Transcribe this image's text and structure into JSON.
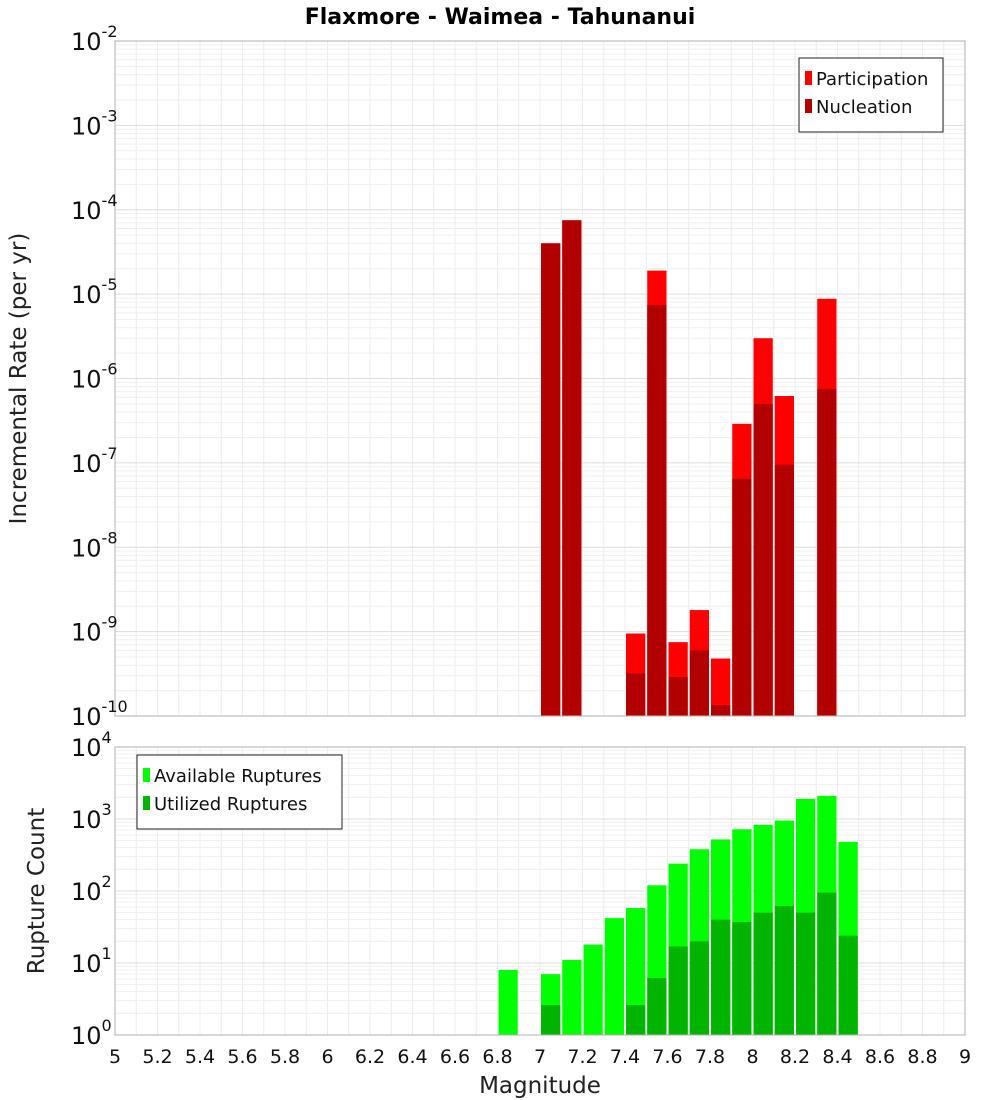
{
  "title": "Flaxmore - Waimea - Tahunanui",
  "chart_data": [
    {
      "type": "bar",
      "xlabel": "Magnitude",
      "ylabel": "Incremental Rate (per yr)",
      "yscale": "log",
      "ylim": [
        1e-10,
        0.01
      ],
      "xlim": [
        5,
        9
      ],
      "legend": "top-right",
      "x": [
        7.0,
        7.1,
        7.4,
        7.5,
        7.6,
        7.7,
        7.8,
        7.9,
        8.0,
        8.1,
        8.3
      ],
      "series": [
        {
          "name": "Participation",
          "color": "#ff0000",
          "values": [
            4e-05,
            7.5e-05,
            9.5e-10,
            1.9e-05,
            7.5e-10,
            1.8e-09,
            4.8e-10,
            2.9e-07,
            3e-06,
            6.2e-07,
            8.8e-06
          ]
        },
        {
          "name": "Nucleation",
          "color": "#b20000",
          "values": [
            4e-05,
            7.5e-05,
            3.2e-10,
            7.4e-06,
            2.9e-10,
            6e-10,
            1.35e-10,
            6.5e-08,
            5e-07,
            9.5e-08,
            7.5e-07
          ]
        }
      ]
    },
    {
      "type": "bar",
      "xlabel": "Magnitude",
      "ylabel": "Rupture Count",
      "yscale": "log",
      "ylim": [
        1,
        10000
      ],
      "xlim": [
        5,
        9
      ],
      "legend": "top-left",
      "xticks": [
        "5",
        "5.2",
        "5.4",
        "5.6",
        "5.8",
        "6",
        "6.2",
        "6.4",
        "6.6",
        "6.8",
        "7",
        "7.2",
        "7.4",
        "7.6",
        "7.8",
        "8",
        "8.2",
        "8.4",
        "8.6",
        "8.8",
        "9"
      ],
      "x": [
        6.8,
        7.0,
        7.1,
        7.2,
        7.3,
        7.4,
        7.5,
        7.6,
        7.7,
        7.8,
        7.9,
        8.0,
        8.1,
        8.2,
        8.3,
        8.4
      ],
      "series": [
        {
          "name": "Available Ruptures",
          "color": "#00ff00",
          "values": [
            8,
            7,
            11,
            18,
            42,
            58,
            120,
            240,
            380,
            520,
            720,
            830,
            950,
            1900,
            2100,
            480
          ]
        },
        {
          "name": "Utilized Ruptures",
          "color": "#00b400",
          "values": [
            0,
            2.6,
            1,
            1,
            1,
            2.6,
            6.2,
            17,
            20,
            40,
            37,
            50,
            62,
            50,
            95,
            24
          ]
        }
      ]
    }
  ]
}
